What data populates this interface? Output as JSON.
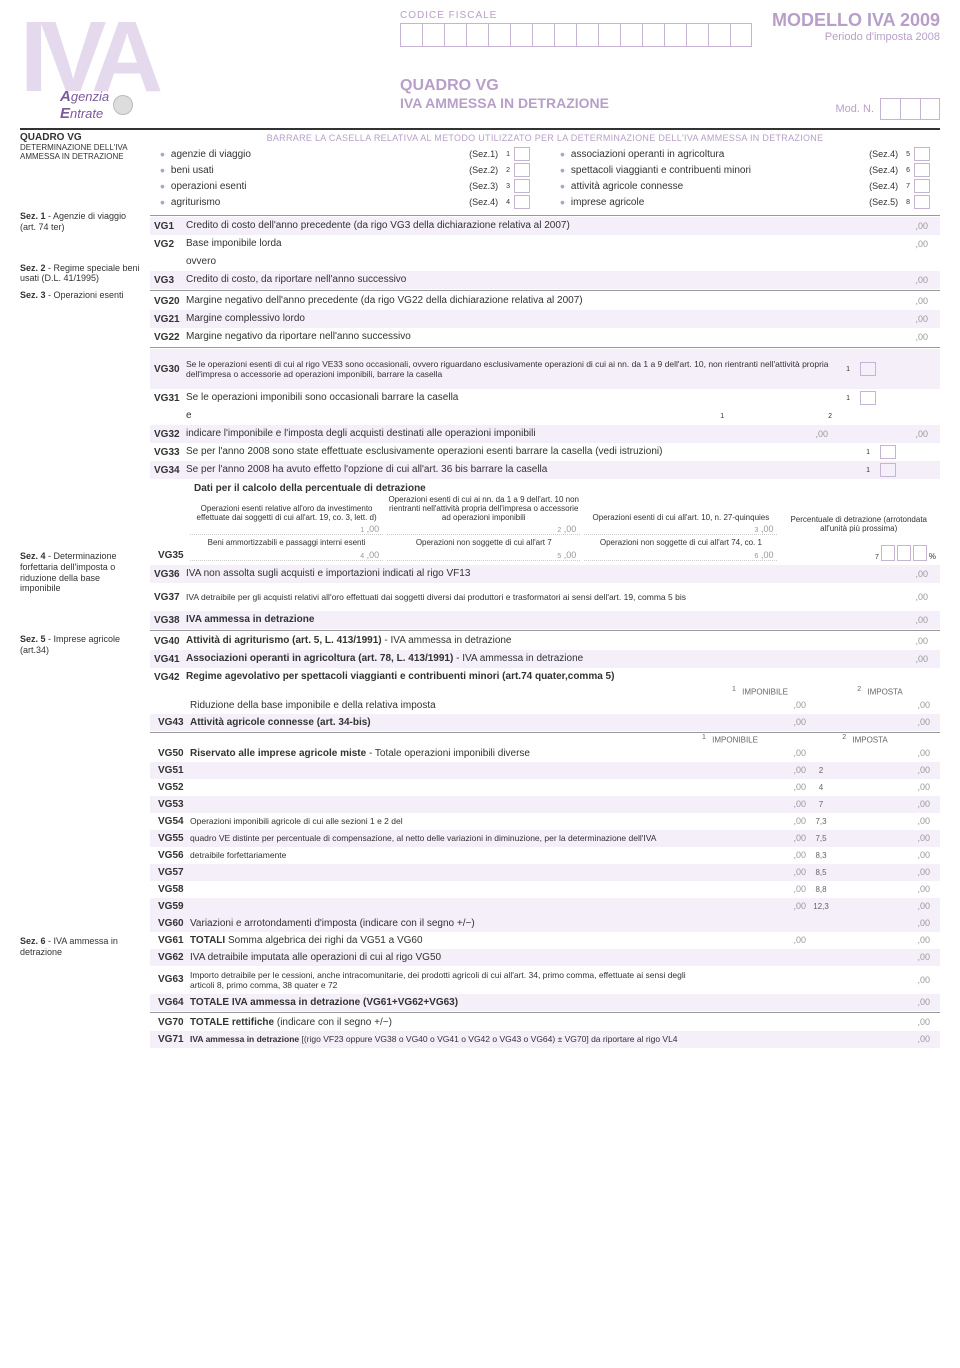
{
  "header": {
    "codice_fiscale_label": "CODICE FISCALE",
    "modello": "MODELLO IVA 2009",
    "periodo": "Periodo d'imposta 2008",
    "quadro_title": "QUADRO VG",
    "quadro_sub": "IVA AMMESSA IN DETRAZIONE",
    "mod_n": "Mod. N.",
    "iva_bg": "IVA",
    "agenzia1": "genzia",
    "agenzia2": "ntrate"
  },
  "sidebar": {
    "head": "QUADRO VG",
    "sub": "DETERMINAZIONE DELL'IVA AMMESSA IN DETRAZIONE",
    "sec1": "Sez. 1 - Agenzie di viaggio (art. 74 ter)",
    "sec2": "Sez. 2 - Regime speciale beni usati (D.L. 41/1995)",
    "sec3": "Sez. 3 - Operazioni esenti",
    "sec4": "Sez. 4 - Determinazione forfettaria dell'imposta o riduzione della base imponibile",
    "sec5": "Sez. 5 - Imprese agricole (art.34)",
    "sec6": "Sez. 6 - IVA ammessa in detrazione"
  },
  "barrare": "BARRARE LA CASELLA RELATIVA AL METODO UTILIZZATO PER LA DETERMINAZIONE DELL'IVA AMMESSA IN DETRAZIONE",
  "methods_left": [
    {
      "txt": "agenzie di viaggio",
      "sez": "(Sez.1)",
      "n": "1"
    },
    {
      "txt": "beni usati",
      "sez": "(Sez.2)",
      "n": "2"
    },
    {
      "txt": "operazioni esenti",
      "sez": "(Sez.3)",
      "n": "3"
    },
    {
      "txt": "agriturismo",
      "sez": "(Sez.4)",
      "n": "4"
    }
  ],
  "methods_right": [
    {
      "txt": "associazioni operanti in agricoltura",
      "sez": "(Sez.4)",
      "n": "5"
    },
    {
      "txt": "spettacoli viaggianti e contribuenti minori",
      "sez": "(Sez.4)",
      "n": "6"
    },
    {
      "txt": "attività agricole connesse",
      "sez": "(Sez.4)",
      "n": "7"
    },
    {
      "txt": "imprese agricole",
      "sez": "(Sez.5)",
      "n": "8"
    }
  ],
  "rows": {
    "vg1": {
      "code": "VG1",
      "desc": "Credito di costo dell'anno precedente (da rigo VG3 della dichiarazione relativa al 2007)"
    },
    "vg2": {
      "code": "VG2",
      "desc": "Base imponibile lorda"
    },
    "ovvero": "ovvero",
    "vg3": {
      "code": "VG3",
      "desc": "Credito di costo, da riportare nell'anno successivo"
    },
    "vg20": {
      "code": "VG20",
      "desc": "Margine negativo dell'anno precedente (da rigo VG22 della dichiarazione relativa al 2007)"
    },
    "vg21": {
      "code": "VG21",
      "desc": "Margine complessivo lordo"
    },
    "vg22": {
      "code": "VG22",
      "desc": "Margine negativo da riportare nell'anno successivo"
    },
    "vg30": {
      "code": "VG30",
      "desc": "Se le operazioni esenti di cui al rigo VE33 sono occasionali, ovvero riguardano esclusivamente operazioni di cui ai nn. da 1 a 9 dell'art. 10, non rientranti nell'attività propria dell'impresa o accessorie ad operazioni imponibili, barrare la casella"
    },
    "vg31": {
      "code": "VG31",
      "desc": "Se le operazioni imponibili sono occasionali barrare la casella"
    },
    "e_label": "e",
    "vg32": {
      "code": "VG32",
      "desc": "indicare l'imponibile e l'imposta degli acquisti destinati alle operazioni imponibili"
    },
    "vg33": {
      "code": "VG33",
      "desc": "Se per l'anno 2008 sono state effettuate esclusivamente operazioni esenti barrare la casella (vedi istruzioni)"
    },
    "vg34": {
      "code": "VG34",
      "desc": "Se per l'anno 2008 ha avuto effetto l'opzione di cui all'art. 36 bis barrare la casella"
    },
    "dati_pct": "Dati per il calcolo della percentuale di detrazione",
    "vg35": {
      "code": "VG35",
      "c1": "Operazioni esenti relative all'oro da investimento effettuate dai soggetti di cui all'art. 19, co. 3, lett. d)",
      "c2": "Operazioni esenti di cui ai nn. da 1 a 9 dell'art. 10 non rientranti nell'attività propria dell'impresa o accessorie ad operazioni imponibili",
      "c3": "Operazioni esenti di cui all'art. 10, n. 27-quinquies",
      "c4": "Beni ammortizzabili e passaggi interni esenti",
      "c5": "Operazioni non soggette di cui all'art 7",
      "c6": "Operazioni non soggette di cui all'art 74, co. 1",
      "c7": "Percentuale di detrazione (arrotondata all'unità più prossima)"
    },
    "vg36": {
      "code": "VG36",
      "desc": "IVA non assolta sugli acquisti e importazioni indicati al rigo VF13"
    },
    "vg37": {
      "code": "VG37",
      "desc": "IVA detraibile per gli acquisti relativi all'oro effettuati dai soggetti diversi dai produttori e trasformatori ai sensi dell'art. 19, comma 5 bis"
    },
    "vg38": {
      "code": "VG38",
      "desc": "IVA ammessa in detrazione"
    },
    "vg40": {
      "code": "VG40",
      "desc": "Attività di agriturismo (art. 5, L. 413/1991) - IVA ammessa in detrazione"
    },
    "vg41": {
      "code": "VG41",
      "desc": "Associazioni operanti in agricoltura (art. 78, L. 413/1991) - IVA ammessa in detrazione"
    },
    "vg42": {
      "code": "VG42",
      "desc": "Regime agevolativo per spettacoli viaggianti e contribuenti minori (art.74 quater,comma 5)"
    },
    "vg42_rid": "Riduzione della base imponibile e della relativa imposta",
    "vg43": {
      "code": "VG43",
      "desc": "Attività agricole connesse (art. 34-bis)"
    },
    "imp_h1": "IMPONIBILE",
    "imp_h2": "IMPOSTA",
    "vg50": {
      "code": "VG50",
      "desc": "Riservato alle imprese agricole miste - Totale operazioni imponibili diverse"
    },
    "vg51": {
      "code": "VG51"
    },
    "vg52": {
      "code": "VG52"
    },
    "vg53": {
      "code": "VG53"
    },
    "vg54": {
      "code": "VG54",
      "desc": "Operazioni imponibili agricole di cui alle sezioni 1 e 2 del"
    },
    "vg55": {
      "code": "VG55",
      "desc": "quadro VE distinte per percentuale di compensazione, al netto delle variazioni in diminuzione, per la determinazione dell'IVA"
    },
    "vg56": {
      "code": "VG56",
      "desc": "detraibile forfettariamente"
    },
    "vg57": {
      "code": "VG57"
    },
    "vg58": {
      "code": "VG58"
    },
    "vg59": {
      "code": "VG59"
    },
    "vg60": {
      "code": "VG60",
      "desc": "Variazioni e arrotondamenti d'imposta (indicare con il segno +/−)"
    },
    "vg61": {
      "code": "VG61",
      "desc": "TOTALI  Somma algebrica dei righi da VG51 a VG60"
    },
    "vg62": {
      "code": "VG62",
      "desc": "IVA detraibile imputata alle operazioni di cui al rigo VG50"
    },
    "vg63": {
      "code": "VG63",
      "desc": "Importo detraibile per le cessioni, anche intracomunitarie, dei prodotti agricoli di cui all'art. 34, primo comma, effettuate ai sensi degli articoli 8, primo comma, 38 quater e 72"
    },
    "vg64": {
      "code": "VG64",
      "desc": "TOTALE IVA ammessa in detrazione (VG61+VG62+VG63)"
    },
    "vg70": {
      "code": "VG70",
      "desc": "TOTALE rettifiche (indicare con il segno +/−)"
    },
    "vg71": {
      "code": "VG71",
      "desc": "IVA ammessa in detrazione [(rigo VF23 oppure VG38 o VG40 o VG41 o VG42 o VG43 o VG64) ± VG70] da riportare al rigo VL4"
    }
  },
  "agri_mids": [
    "2",
    "4",
    "7",
    "7,3",
    "7,5",
    "8,3",
    "8,5",
    "8,8",
    "12,3"
  ],
  "comma": ",00",
  "pct_sign": "%",
  "colors": {
    "accent": "#b89fc9",
    "stripe": "#f4eff8",
    "border": "#c5b4d4"
  }
}
